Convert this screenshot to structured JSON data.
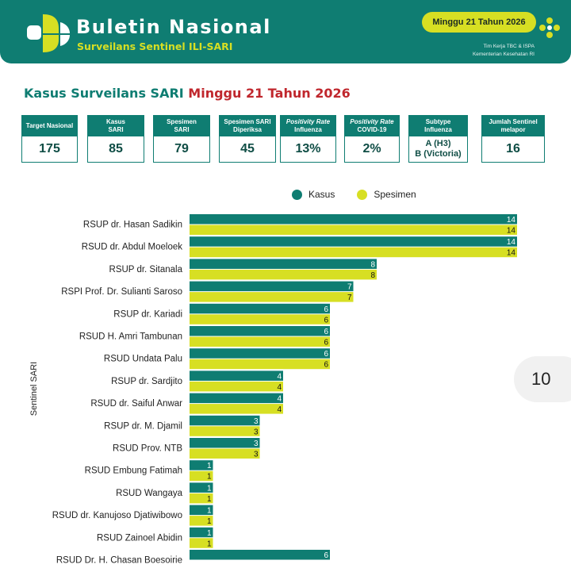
{
  "header": {
    "title": "Buletin Nasional",
    "subtitle": "Surveilans Sentinel ILI-SARI",
    "week_pill": "Minggu 21 Tahun 2026",
    "team_line1": "Tim Kerja TBC & ISPA",
    "team_line2": "Kementerian Kesehatan RI"
  },
  "section": {
    "title_part1": "Kasus Surveilans SARI",
    "title_part2": "Minggu 21 Tahun 2026"
  },
  "cards": [
    {
      "label": "Target Nasional",
      "value": "175"
    },
    {
      "label_line1": "Kasus",
      "label_line2": "SARI",
      "value": "85"
    },
    {
      "label_line1": "Spesimen",
      "label_line2": "SARI",
      "value": "79"
    },
    {
      "label_line1": "Spesimen SARI",
      "label_line2": "Diperiksa",
      "value": "45"
    },
    {
      "label_line1": "Positivity Rate",
      "label_line2": "Influenza",
      "value": "13%"
    },
    {
      "label_line1": "Positivity Rate",
      "label_line2": "COVID-19",
      "value": "2%"
    },
    {
      "label_line1": "Subtype",
      "label_line2": "Influenza",
      "value_line1": "A (H3)",
      "value_line2": "B (Victoria)"
    },
    {
      "label_line1": "Jumlah Sentinel",
      "label_line2": "melapor",
      "value": "16"
    }
  ],
  "page_number": "10",
  "colors": {
    "kasus": "#0f7d72",
    "spesimen": "#d7df23"
  },
  "chart_data": {
    "type": "bar",
    "orientation": "horizontal",
    "ylabel": "Sentinel SARI",
    "legend_position": "top",
    "categories": [
      "RSUP dr. Hasan Sadikin",
      "RSUD dr. Abdul Moeloek",
      "RSUP dr. Sitanala",
      "RSPI Prof. Dr. Sulianti Saroso",
      "RSUP dr. Kariadi",
      "RSUD H. Amri Tambunan",
      "RSUD Undata Palu",
      "RSUP dr. Sardjito",
      "RSUD dr. Saiful Anwar",
      "RSUP dr. M. Djamil",
      "RSUD Prov. NTB",
      "RSUD Embung Fatimah",
      "RSUD Wangaya",
      "RSUD dr. Kanujoso Djatiwibowo",
      "RSUD Zainoel Abidin",
      "RSUD Dr. H. Chasan Boesoirie"
    ],
    "series": [
      {
        "name": "Kasus",
        "values": [
          14,
          14,
          8,
          7,
          6,
          6,
          6,
          4,
          4,
          3,
          3,
          1,
          1,
          1,
          1,
          6
        ]
      },
      {
        "name": "Spesimen",
        "values": [
          14,
          14,
          8,
          7,
          6,
          6,
          6,
          4,
          4,
          3,
          3,
          1,
          1,
          1,
          1,
          null
        ]
      }
    ],
    "xlim": [
      0,
      14
    ]
  }
}
